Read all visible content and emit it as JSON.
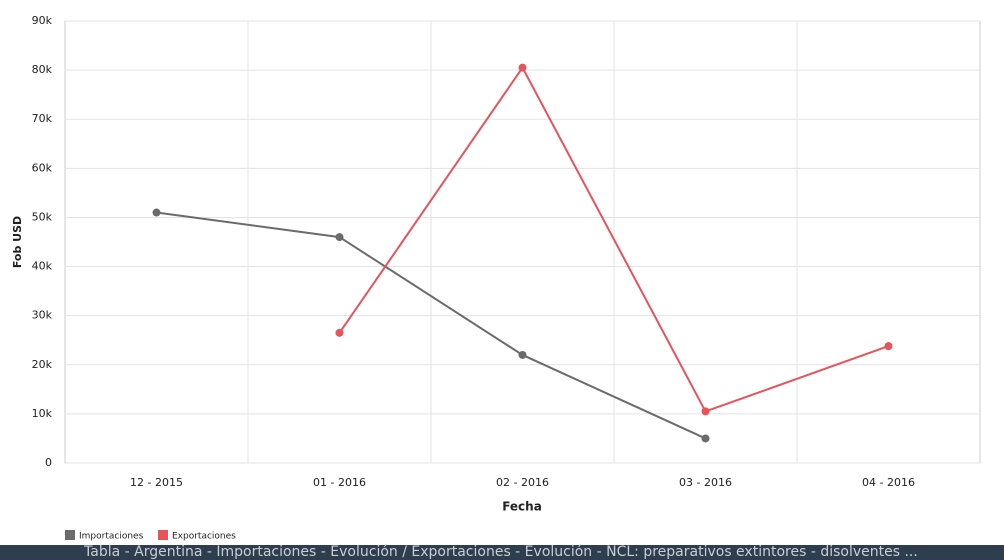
{
  "chart_data": {
    "type": "line",
    "x_label": "Fecha",
    "y_label": "Fob USD",
    "categories": [
      "12 - 2015",
      "01 - 2016",
      "02 - 2016",
      "03 - 2016",
      "04 - 2016"
    ],
    "series": [
      {
        "name": "Importaciones",
        "color": "#6b6b6b",
        "values": [
          51000,
          46000,
          22000,
          5000,
          null
        ]
      },
      {
        "name": "Exportaciones",
        "color": "#e8525a",
        "values": [
          null,
          26500,
          80500,
          10500,
          23800
        ]
      }
    ],
    "ylim": [
      0,
      90000
    ],
    "yticks": [
      0,
      {
        "value": 10000,
        "label": "10k"
      },
      {
        "value": 20000,
        "label": "20k"
      },
      {
        "value": 30000,
        "label": "30k"
      },
      {
        "value": 40000,
        "label": "40k"
      },
      {
        "value": 50000,
        "label": "50k"
      },
      {
        "value": 60000,
        "label": "60k"
      },
      {
        "value": 70000,
        "label": "70k"
      },
      {
        "value": 80000,
        "label": "80k"
      },
      {
        "value": 90000,
        "label": "90k"
      }
    ],
    "grid": true
  },
  "footer_text": "Tabla - Argentina - Importaciones - Evolución / Exportaciones - Evolución - NCL: preparativos extintores - disolventes ..."
}
